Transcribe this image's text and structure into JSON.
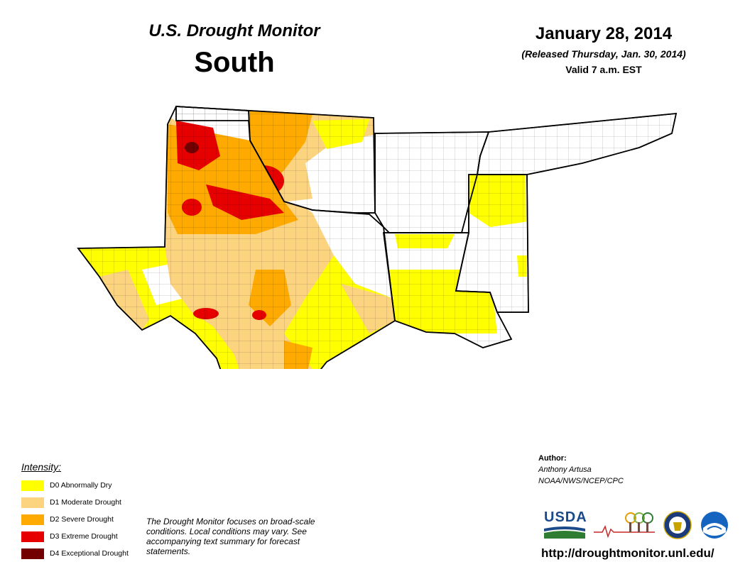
{
  "header": {
    "title": "U.S. Drought Monitor",
    "region": "South",
    "date": "January 28, 2014",
    "released": "(Released Thursday, Jan. 30, 2014)",
    "valid": "Valid 7 a.m. EST"
  },
  "legend": {
    "title": "Intensity:",
    "items": [
      {
        "label": "D0 Abnormally Dry",
        "color": "#ffff00"
      },
      {
        "label": "D1 Moderate Drought",
        "color": "#fcd37f"
      },
      {
        "label": "D2 Severe Drought",
        "color": "#ffaa00"
      },
      {
        "label": "D3 Extreme Drought",
        "color": "#e60000"
      },
      {
        "label": "D4 Exceptional Drought",
        "color": "#730000"
      }
    ]
  },
  "note": "The Drought Monitor focuses on broad-scale conditions. Local conditions may vary. See accompanying text summary for forecast statements.",
  "author": {
    "label": "Author:",
    "name": "Anthony Artusa",
    "org": "NOAA/NWS/NCEP/CPC"
  },
  "logos": {
    "usda": "USDA",
    "ndmc_icon": "ndmc-tree-logo-icon",
    "doc_icon": "department-of-commerce-seal-icon",
    "noaa_icon": "noaa-logo-icon"
  },
  "url": "http://droughtmonitor.unl.edu/"
}
